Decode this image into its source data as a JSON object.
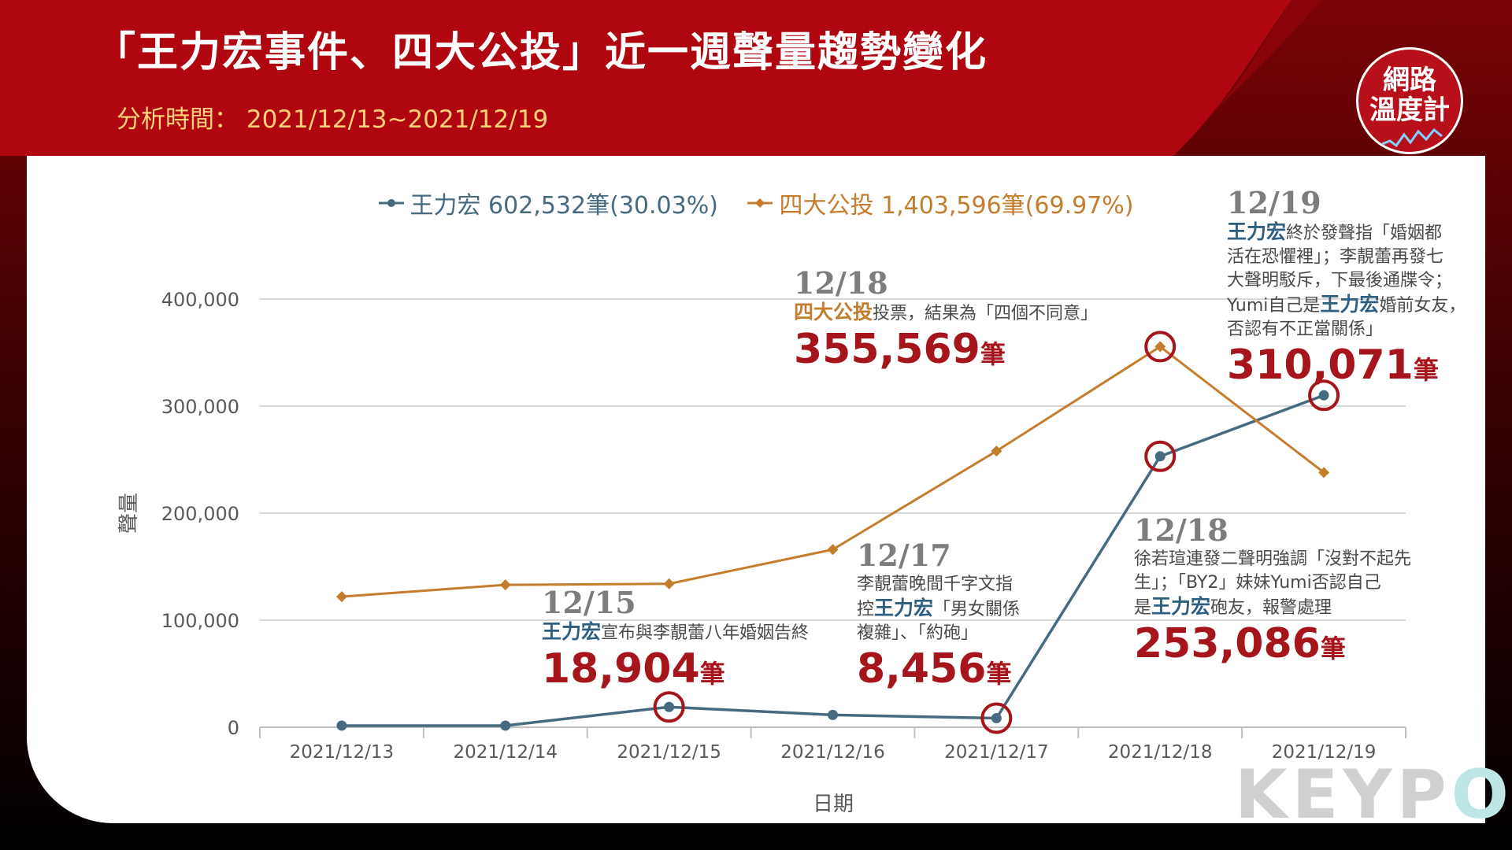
{
  "header": {
    "title": "「王力宏事件、四大公投」近一週聲量趨勢變化",
    "subtitle": "分析時間： 2021/12/13~2021/12/19"
  },
  "badge": {
    "line1": "網路",
    "line2": "溫度計"
  },
  "colors": {
    "series1": "#466a80",
    "series2": "#c47d2c",
    "highlight": "#a6141c",
    "header": "#b00610"
  },
  "chart_data": {
    "type": "line",
    "categories": [
      "2021/12/13",
      "2021/12/14",
      "2021/12/15",
      "2021/12/16",
      "2021/12/17",
      "2021/12/18",
      "2021/12/19"
    ],
    "series": [
      {
        "name": "王力宏",
        "legend": "王力宏 602,532筆(30.03%)",
        "values": [
          1500,
          1500,
          18904,
          11500,
          8456,
          253086,
          310071
        ]
      },
      {
        "name": "四大公投",
        "legend": "四大公投 1,403,596筆(69.97%)",
        "values": [
          122000,
          133000,
          134000,
          166000,
          258000,
          355569,
          238000
        ]
      }
    ],
    "highlights": [
      {
        "series": 0,
        "index": 2
      },
      {
        "series": 0,
        "index": 4
      },
      {
        "series": 0,
        "index": 5
      },
      {
        "series": 0,
        "index": 6
      },
      {
        "series": 1,
        "index": 5
      }
    ],
    "xlabel": "日期",
    "ylabel": "聲量",
    "ylim": [
      0,
      400000
    ],
    "yticks": [
      0,
      100000,
      200000,
      300000,
      400000
    ],
    "ytick_labels": [
      "0",
      "100,000",
      "200,000",
      "300,000",
      "400,000"
    ],
    "grid": true,
    "legend_position": "top-center"
  },
  "annotations": {
    "a1215": {
      "date": "12/15",
      "name": "王力宏",
      "desc": "宣布與李靚蕾八年婚姻告終",
      "value": "18,904",
      "unit": "筆"
    },
    "a1217": {
      "date": "12/17",
      "line1": "李靚蕾晚間千字文指",
      "pre2": "控",
      "name": "王力宏",
      "post2": "「男女關係",
      "line3": "複雜」、「約砲」",
      "value": "8,456",
      "unit": "筆"
    },
    "a1218o": {
      "date": "12/18",
      "name": "四大公投",
      "desc": "投票，結果為「四個不同意」",
      "value": "355,569",
      "unit": "筆"
    },
    "a1218b": {
      "date": "12/18",
      "line1": "徐若瑄連發二聲明強調「沒對不起先",
      "line2": "生」；「BY2」妹妹Yumi否認自己",
      "pre3": "是",
      "name": "王力宏",
      "post3": "砲友，報警處理",
      "value": "253,086",
      "unit": "筆"
    },
    "a1219": {
      "date": "12/19",
      "name": "王力宏",
      "post1": "終於發聲指「婚姻都",
      "line2": "活在恐懼裡」；李靚蕾再發七",
      "line3": "大聲明駁斥，下最後通牒令；",
      "pre4": "Yumi自己是",
      "name4": "王力宏",
      "post4": "婚前女友，",
      "line5": "否認有不正當關係」",
      "value": "310,071",
      "unit": "筆"
    }
  },
  "watermark": {
    "main": "KEYP",
    "tail": "O"
  }
}
